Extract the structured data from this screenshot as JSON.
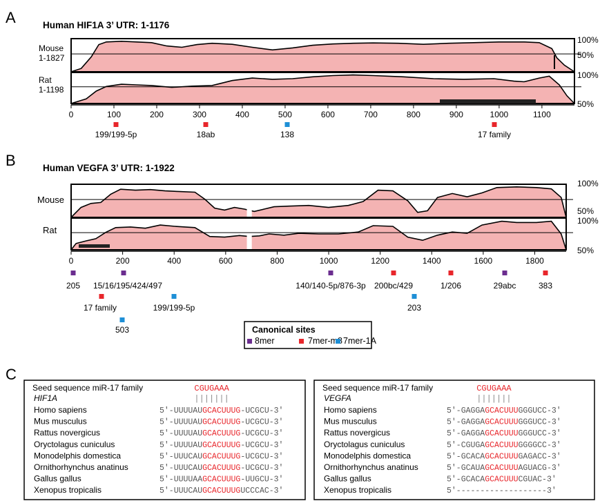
{
  "panels": {
    "A": {
      "letter": "A",
      "title": "Human HIF1A 3’ UTR: 1-1176",
      "tracks": [
        {
          "name": "Mouse",
          "range": "1-1827"
        },
        {
          "name": "Rat",
          "range": "1-1198"
        }
      ],
      "right_top": "100%",
      "right_mid": "50%",
      "x_ticks": [
        "0",
        "100",
        "200",
        "300",
        "400",
        "500",
        "600",
        "700",
        "800",
        "900",
        "1000",
        "1100"
      ],
      "sites": [
        {
          "label": "199/199-5p",
          "type": "7mer-m8",
          "pos": 100
        },
        {
          "label": "18ab",
          "type": "7mer-m8",
          "pos": 310
        },
        {
          "label": "138",
          "type": "7mer-1A",
          "pos": 500
        },
        {
          "label": "17 family",
          "type": "7mer-m8",
          "pos": 990
        }
      ]
    },
    "B": {
      "letter": "B",
      "title": "Human VEGFA 3’ UTR: 1-1922",
      "tracks": [
        {
          "name": "Mouse"
        },
        {
          "name": "Rat"
        }
      ],
      "right_top": "100%",
      "right_mid": "50%",
      "x_ticks": [
        "0",
        "200",
        "400",
        "600",
        "800",
        "1000",
        "1200",
        "1400",
        "1600",
        "1800"
      ],
      "sites": [
        {
          "label": "205",
          "type": "8mer",
          "pos": 55
        },
        {
          "label": "15/16/195/424/497",
          "type": "8mer",
          "pos": 215
        },
        {
          "label": "17 family",
          "type": "7mer-m8",
          "pos": 150
        },
        {
          "label": "199/199-5p",
          "type": "7mer-1A",
          "pos": 400
        },
        {
          "label": "503",
          "type": "7mer-1A",
          "pos": 200
        },
        {
          "label": "140/140-5p/876-3p",
          "type": "8mer",
          "pos": 1000
        },
        {
          "label": "200bc/429",
          "type": "7mer-m8",
          "pos": 1255
        },
        {
          "label": "203",
          "type": "7mer-1A",
          "pos": 1340
        },
        {
          "label": "1/206",
          "type": "7mer-m8",
          "pos": 1470
        },
        {
          "label": "29abc",
          "type": "8mer",
          "pos": 1690
        },
        {
          "label": "383",
          "type": "7mer-m8",
          "pos": 1835
        }
      ]
    },
    "legend": {
      "title": "Canonical sites",
      "items": [
        {
          "label": "8mer",
          "color": "#6b2d8f"
        },
        {
          "label": "7mer-m8",
          "color": "#e8262b"
        },
        {
          "label": "7mer-1A",
          "color": "#1e8fd6"
        }
      ]
    },
    "C": {
      "letter": "C",
      "boxes": [
        {
          "seed_label": "Seed sequence miR-17 family",
          "seed": "CGUGAAA",
          "bars": "|||||||",
          "gene": "HIF1A",
          "rows": [
            {
              "species": "Homo sapiens",
              "pre": "5′-UUUUAU",
              "hl": "GCACUUUG",
              "post": "-UCGCU-3′"
            },
            {
              "species": "Mus musculus",
              "pre": "5′-UUUUAU",
              "hl": "GCACUUUG",
              "post": "-UCGCU-3′"
            },
            {
              "species": "Rattus novergicus",
              "pre": "5′-UUUUAU",
              "hl": "GCACUUUG",
              "post": "-UCGCU-3′"
            },
            {
              "species": "Oryctolagus cuniculus",
              "pre": "5′-UUUUAU",
              "hl": "GCACUUUG",
              "post": "-UCGCU-3′"
            },
            {
              "species": "Monodelphis domestica",
              "pre": "5′-UUUCAU",
              "hl": "GCACUUUG",
              "post": "-UCGCU-3′"
            },
            {
              "species": "Ornithorhynchus anatinus",
              "pre": "5′-UUUCAU",
              "hl": "GCACUUUG",
              "post": "-UCGCU-3′"
            },
            {
              "species": "Gallus gallus",
              "pre": "5′-UUUUAA",
              "hl": "GCACUUUG",
              "post": "-UUGCU-3′"
            },
            {
              "species": "Xenopus tropicalis",
              "pre": "5′-UUUCAU",
              "hl": "GCACUUUG",
              "post": "UCCCAC-3′"
            }
          ]
        },
        {
          "seed_label": "Seed sequence miR-17 family",
          "seed": "CGUGAAA",
          "bars": "|||||||",
          "gene": "VEGFA",
          "rows": [
            {
              "species": "Homo sapiens",
              "pre": "5′-GAGGA",
              "hl": "GCACUUU",
              "post": "GGGUCC-3′"
            },
            {
              "species": "Mus musculus",
              "pre": "5′-GAGGA",
              "hl": "GCACUUU",
              "post": "GGGUCC-3′"
            },
            {
              "species": "Rattus novergicus",
              "pre": "5′-GAGGA",
              "hl": "GCACUUU",
              "post": "GGGUCC-3′"
            },
            {
              "species": "Oryctolagus cuniculus",
              "pre": "5′-CGUGA",
              "hl": "GCACUUU",
              "post": "GGGGCC-3′"
            },
            {
              "species": "Monodelphis domestica",
              "pre": "5′-GCACA",
              "hl": "GCACUUU",
              "post": "GAGACC-3′"
            },
            {
              "species": "Ornithorhynchus anatinus",
              "pre": "5′-GCAUA",
              "hl": "GCACUUU",
              "post": "AGUACG-3′"
            },
            {
              "species": "Gallus gallus",
              "pre": "5′-GCACA",
              "hl": "GCACUUU",
              "post": "CGUAC-3′"
            },
            {
              "species": "Xenopus tropicalis",
              "pre": "5′-",
              "hl": "",
              "post": "------------------3′"
            }
          ]
        }
      ]
    }
  },
  "colors": {
    "fill": "#f4b3b3",
    "red": "#e8262b",
    "purple": "#6b2d8f",
    "blue": "#1e8fd6",
    "seq_red": "#e8262b",
    "seq_gray": "#555555"
  }
}
